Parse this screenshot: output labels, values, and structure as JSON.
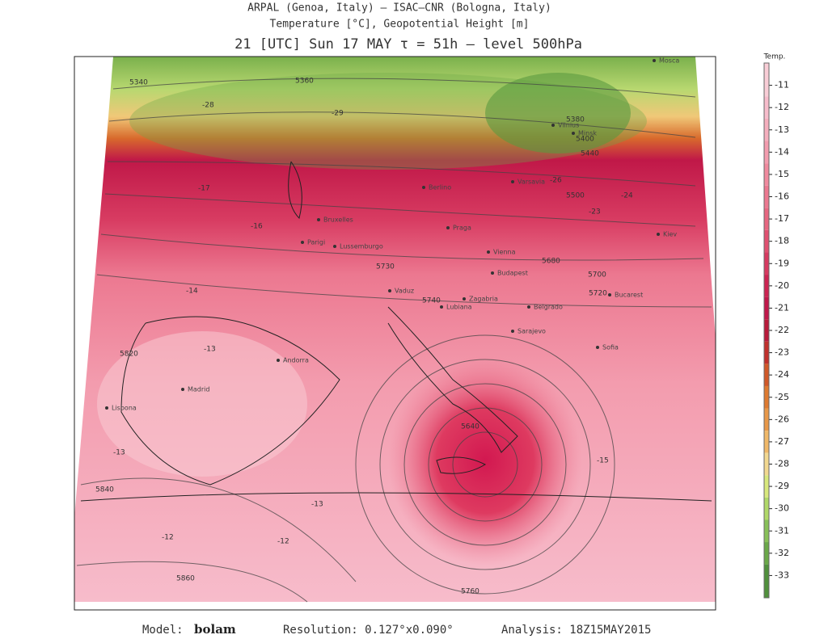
{
  "header": {
    "line1": "ARPAL (Genoa, Italy)  –  ISAC–CNR (Bologna, Italy)",
    "line2": "Temperature [°C], Geopotential Height [m]",
    "line3": "21 [UTC] Sun 17 MAY  τ = 51h  –  level 500hPa"
  },
  "colorbar": {
    "title": "Temp.",
    "levels": [
      -11,
      -12,
      -13,
      -14,
      -15,
      -16,
      -17,
      -18,
      -19,
      -20,
      -21,
      -22,
      -23,
      -24,
      -25,
      -26,
      -27,
      -28,
      -29,
      -30,
      -31,
      -32,
      -33
    ],
    "colors": [
      "#f9cdd6",
      "#f7bccb",
      "#f5aebd",
      "#f39cae",
      "#f08a9e",
      "#ec7890",
      "#e76680",
      "#e05070",
      "#d63a60",
      "#cc2452",
      "#c0184a",
      "#b81a3a",
      "#c0302c",
      "#d05828",
      "#de7a30",
      "#e89848",
      "#f0b868",
      "#f2d890",
      "#d8e87c",
      "#b0d868",
      "#88c058",
      "#6aa848",
      "#50903c"
    ]
  },
  "cities": [
    "Madrid",
    "Lisbona",
    "Andorra",
    "Parigi",
    "Bruxelles",
    "Lussemburgo",
    "Berlino",
    "Varsavia",
    "Minsk",
    "Vilnius",
    "Praga",
    "Vienna",
    "Budapest",
    "Zagabria",
    "Lubiana",
    "Belgrado",
    "Sarajevo",
    "Sofia",
    "Bucarest",
    "Mosca",
    "Vaduz",
    "Kiev"
  ],
  "contour_labels": [
    "5340",
    "5360",
    "5380",
    "5400",
    "5440",
    "5500",
    "5680",
    "5700",
    "5720",
    "5730",
    "5740",
    "5820",
    "5840",
    "5860",
    "5760",
    "5640",
    "-28",
    "-29",
    "-26",
    "-24",
    "-23",
    "-17",
    "-16",
    "-14",
    "-13",
    "-13",
    "-13",
    "-12",
    "-12",
    "-15"
  ],
  "footer": {
    "model_label": "Model:",
    "model": "bolam",
    "resolution": "Resolution: 0.127°x0.090°",
    "analysis": "Analysis: 18Z15MAY2015"
  }
}
